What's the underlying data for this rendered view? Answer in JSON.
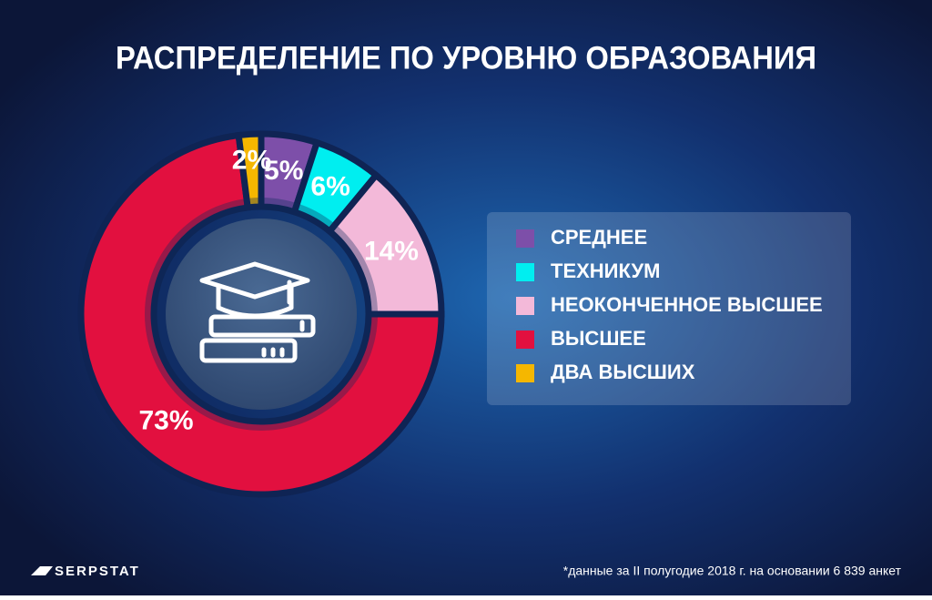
{
  "chart_data": {
    "type": "pie",
    "title": "РАСПРЕДЕЛЕНИЕ  ПО УРОВНЮ ОБРАЗОВАНИЯ",
    "categories": [
      "СРЕДНЕЕ",
      "ТЕХНИКУМ",
      "НЕОКОНЧЕННОЕ ВЫСШЕЕ",
      "ВЫСШЕЕ",
      "ДВА ВЫСШИХ"
    ],
    "values": [
      5,
      6,
      14,
      73,
      2
    ],
    "value_labels": [
      "5%",
      "6%",
      "14%",
      "73%",
      "2%"
    ],
    "colors": [
      "#7d4fa9",
      "#00eef0",
      "#f3b9d9",
      "#e2103f",
      "#f5b700"
    ],
    "brand": "SERPSTAT",
    "footnote": "*данные за II полугодие 2018 г. на основании 6 839 анкет"
  }
}
